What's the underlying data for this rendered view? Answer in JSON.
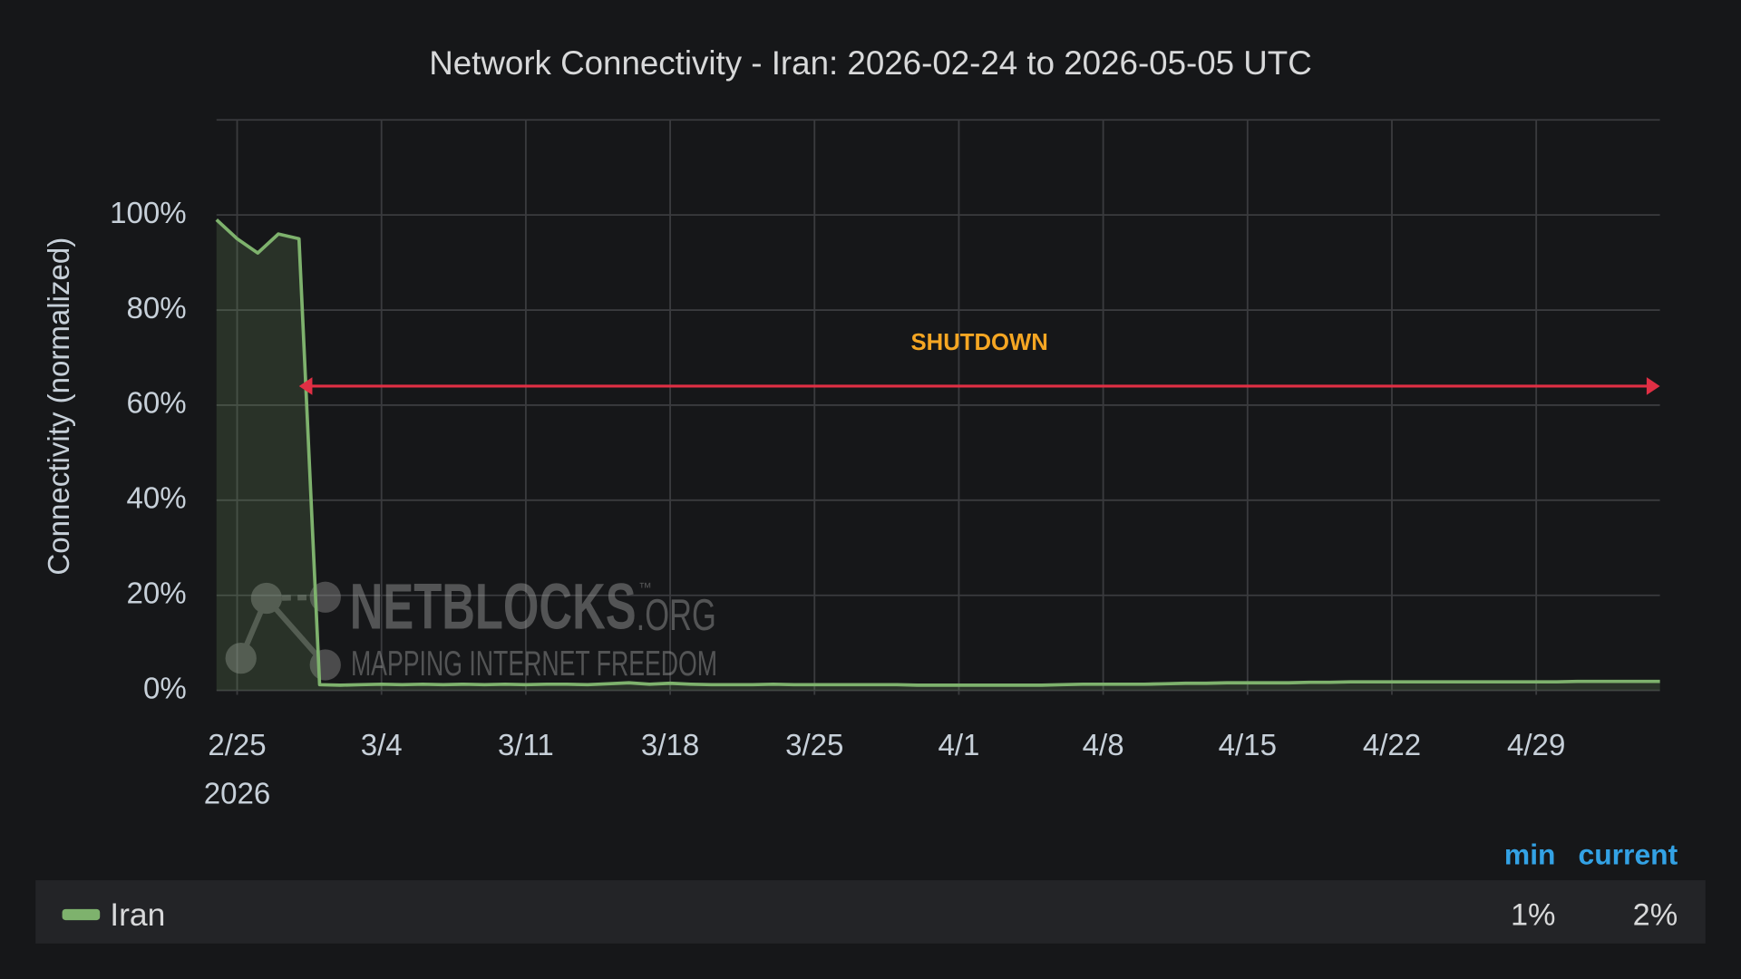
{
  "chart_data": {
    "type": "line",
    "title": "Network Connectivity - Iran: 2026-02-24 to 2026-05-05 UTC",
    "y_label": "Connectivity (normalized)",
    "x": [
      "2026-02-24",
      "2026-02-25",
      "2026-02-26",
      "2026-02-27",
      "2026-02-28",
      "2026-03-01",
      "2026-03-02",
      "2026-03-03",
      "2026-03-04",
      "2026-03-05",
      "2026-03-06",
      "2026-03-07",
      "2026-03-08",
      "2026-03-09",
      "2026-03-10",
      "2026-03-11",
      "2026-03-12",
      "2026-03-13",
      "2026-03-14",
      "2026-03-15",
      "2026-03-16",
      "2026-03-17",
      "2026-03-18",
      "2026-03-19",
      "2026-03-20",
      "2026-03-21",
      "2026-03-22",
      "2026-03-23",
      "2026-03-24",
      "2026-03-25",
      "2026-03-26",
      "2026-03-27",
      "2026-03-28",
      "2026-03-29",
      "2026-03-30",
      "2026-03-31",
      "2026-04-01",
      "2026-04-02",
      "2026-04-03",
      "2026-04-04",
      "2026-04-05",
      "2026-04-06",
      "2026-04-07",
      "2026-04-08",
      "2026-04-09",
      "2026-04-10",
      "2026-04-11",
      "2026-04-12",
      "2026-04-13",
      "2026-04-14",
      "2026-04-15",
      "2026-04-16",
      "2026-04-17",
      "2026-04-18",
      "2026-04-19",
      "2026-04-20",
      "2026-04-21",
      "2026-04-22",
      "2026-04-23",
      "2026-04-24",
      "2026-04-25",
      "2026-04-26",
      "2026-04-27",
      "2026-04-28",
      "2026-04-29",
      "2026-04-30",
      "2026-05-01",
      "2026-05-02",
      "2026-05-03",
      "2026-05-04",
      "2026-05-05"
    ],
    "series": [
      {
        "name": "Iran",
        "color": "#7eb26d",
        "values": [
          99,
          95,
          92,
          96,
          95,
          1.2,
          1.1,
          1.2,
          1.3,
          1.2,
          1.3,
          1.2,
          1.3,
          1.2,
          1.3,
          1.2,
          1.3,
          1.3,
          1.2,
          1.4,
          1.6,
          1.3,
          1.5,
          1.3,
          1.2,
          1.2,
          1.2,
          1.3,
          1.2,
          1.2,
          1.2,
          1.2,
          1.2,
          1.2,
          1.1,
          1.1,
          1.1,
          1.1,
          1.1,
          1.1,
          1.1,
          1.2,
          1.3,
          1.3,
          1.3,
          1.3,
          1.4,
          1.5,
          1.5,
          1.6,
          1.6,
          1.6,
          1.6,
          1.7,
          1.7,
          1.8,
          1.8,
          1.8,
          1.8,
          1.8,
          1.8,
          1.8,
          1.8,
          1.8,
          1.8,
          1.8,
          1.9,
          1.9,
          1.9,
          1.9,
          1.9
        ]
      }
    ],
    "xlim": [
      "2026-02-24",
      "2026-05-05"
    ],
    "xticks": [
      {
        "value": "2026-02-25",
        "label": "2/25"
      },
      {
        "value": "2026-03-04",
        "label": "3/4"
      },
      {
        "value": "2026-03-11",
        "label": "3/11"
      },
      {
        "value": "2026-03-18",
        "label": "3/18"
      },
      {
        "value": "2026-03-25",
        "label": "3/25"
      },
      {
        "value": "2026-04-01",
        "label": "4/1"
      },
      {
        "value": "2026-04-08",
        "label": "4/8"
      },
      {
        "value": "2026-04-15",
        "label": "4/15"
      },
      {
        "value": "2026-04-22",
        "label": "4/22"
      },
      {
        "value": "2026-04-29",
        "label": "4/29"
      }
    ],
    "x_year_label": "2026",
    "ylim": [
      0,
      120
    ],
    "yticks": [
      {
        "value": 0,
        "label": "0%"
      },
      {
        "value": 20,
        "label": "20%"
      },
      {
        "value": 40,
        "label": "40%"
      },
      {
        "value": 60,
        "label": "60%"
      },
      {
        "value": 80,
        "label": "80%"
      },
      {
        "value": 100,
        "label": "100%"
      }
    ],
    "grid": true,
    "annotation": {
      "text": "SHUTDOWN",
      "x_start": "2026-02-28",
      "x_end": "2026-05-05",
      "y": 64,
      "color": "#e02f44",
      "text_color": "#f5a623"
    },
    "legend_stats": [
      {
        "label": "min",
        "value": "1%"
      },
      {
        "label": "current",
        "value": "2%"
      }
    ],
    "watermark": {
      "title": "NETBLOCKS",
      "tm": "™",
      "suffix": ".ORG",
      "tagline": "MAPPING INTERNET FREEDOM"
    }
  }
}
